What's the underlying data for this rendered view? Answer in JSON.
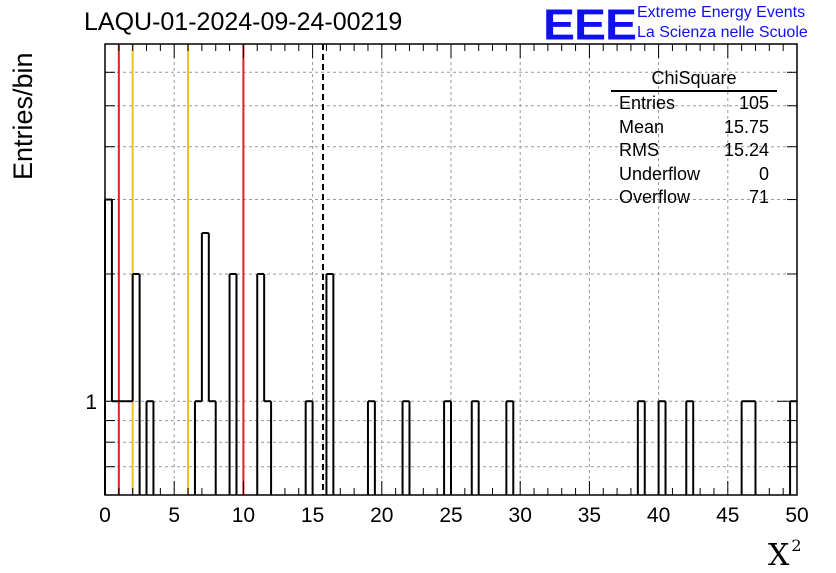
{
  "title": "LAQU-01-2024-09-24-00219",
  "logo": {
    "text": "EEE",
    "line1": "Extreme Energy Events",
    "line2": "La Scienza nelle Scuole",
    "color": "#1010ee"
  },
  "stats": {
    "title": "ChiSquare",
    "rows": [
      {
        "label": "Entries",
        "value": "105"
      },
      {
        "label": "Mean",
        "value": "15.75"
      },
      {
        "label": "RMS",
        "value": "15.24"
      },
      {
        "label": "Underflow",
        "value": "0"
      },
      {
        "label": "Overflow",
        "value": "71"
      }
    ]
  },
  "chart_data": {
    "type": "histogram",
    "title": "LAQU-01-2024-09-24-00219",
    "xlabel": "X",
    "xlabel_sup": "2",
    "ylabel": "Entries/bin",
    "xlim": [
      0,
      50
    ],
    "bin_width": 0.5,
    "y_scale": "log",
    "ylim": [
      0.6,
      7
    ],
    "x_ticks": [
      "0",
      "5",
      "10",
      "15",
      "20",
      "25",
      "30",
      "35",
      "40",
      "45",
      "50"
    ],
    "y_tick_label": "1",
    "grid": true,
    "bins": [
      {
        "x": 0.0,
        "count": 3
      },
      {
        "x": 0.5,
        "count": 1
      },
      {
        "x": 1.0,
        "count": 1
      },
      {
        "x": 1.5,
        "count": 1
      },
      {
        "x": 2.0,
        "count": 2
      },
      {
        "x": 3.0,
        "count": 1
      },
      {
        "x": 6.5,
        "count": 1
      },
      {
        "x": 7.0,
        "count": 2.5
      },
      {
        "x": 7.5,
        "count": 1
      },
      {
        "x": 9.0,
        "count": 2
      },
      {
        "x": 11.0,
        "count": 2
      },
      {
        "x": 11.5,
        "count": 1
      },
      {
        "x": 14.5,
        "count": 1
      },
      {
        "x": 16.0,
        "count": 2
      },
      {
        "x": 19.0,
        "count": 1
      },
      {
        "x": 21.5,
        "count": 1
      },
      {
        "x": 24.5,
        "count": 1
      },
      {
        "x": 26.5,
        "count": 1
      },
      {
        "x": 29.0,
        "count": 1
      },
      {
        "x": 38.5,
        "count": 1
      },
      {
        "x": 40.0,
        "count": 1
      },
      {
        "x": 42.0,
        "count": 1
      },
      {
        "x": 46.0,
        "count": 1
      },
      {
        "x": 46.5,
        "count": 1
      },
      {
        "x": 49.5,
        "count": 1
      }
    ],
    "vertical_lines": [
      {
        "x": 1.0,
        "color": "#dd2222",
        "style": "solid"
      },
      {
        "x": 2.0,
        "color": "#f0c020",
        "style": "solid"
      },
      {
        "x": 6.0,
        "color": "#f0c020",
        "style": "solid"
      },
      {
        "x": 10.0,
        "color": "#dd2222",
        "style": "solid"
      },
      {
        "x": 15.75,
        "color": "#000000",
        "style": "dashed"
      }
    ]
  }
}
